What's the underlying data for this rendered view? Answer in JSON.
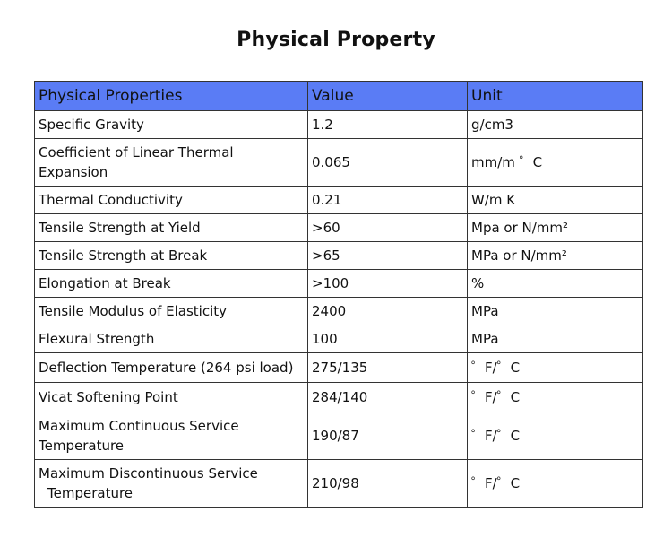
{
  "title": "Physical Property",
  "table": {
    "headers": [
      "Physical Properties",
      "Value",
      "Unit"
    ],
    "rows": [
      {
        "property": "Specific Gravity",
        "value": "1.2",
        "unit": "g/cm3"
      },
      {
        "property_line1": "Coefficient of Linear Thermal",
        "property_line2": "Expansion",
        "value": "0.065",
        "unit": "mm/m ゜C"
      },
      {
        "property": "Thermal Conductivity",
        "value": "0.21",
        "unit": "W/m K"
      },
      {
        "property": "Tensile Strength at Yield",
        "value": ">60",
        "unit": "Mpa or N/mm²"
      },
      {
        "property": "Tensile Strength at Break",
        "value": ">65",
        "unit": "MPa or N/mm²"
      },
      {
        "property": "Elongation at Break",
        "value": ">100",
        "unit": "%"
      },
      {
        "property": "Tensile Modulus of Elasticity",
        "value": "2400",
        "unit": "MPa"
      },
      {
        "property": "Flexural Strength",
        "value": "100",
        "unit": "MPa"
      },
      {
        "property": "Deflection Temperature (264 psi load)",
        "value": "275/135",
        "unit": "゜F/゜C"
      },
      {
        "property": "Vicat Softening Point",
        "value": "284/140",
        "unit": "゜F/゜C"
      },
      {
        "property_line1": "Maximum Continuous Service",
        "property_line2": "Temperature",
        "value": "190/87",
        "unit": "゜F/゜C"
      },
      {
        "property_line1": "Maximum Discontinuous Service",
        "property_line2": "Temperature",
        "value": "210/98",
        "unit": "゜F/゜C"
      }
    ]
  },
  "colors": {
    "header_background": "#5a7cf5",
    "border": "#333333"
  }
}
